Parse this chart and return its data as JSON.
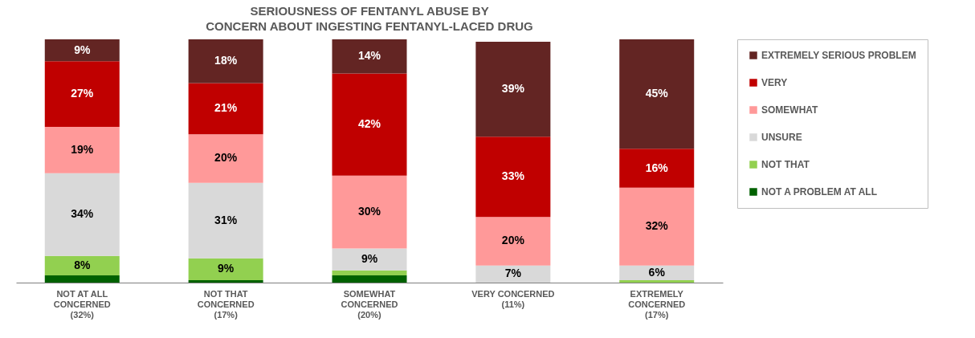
{
  "chart_data": {
    "type": "bar",
    "stacked": true,
    "title": "SERIOUSNESS OF FENTANYL ABUSE BY\nCONCERN ABOUT INGESTING FENTANYL-LACED DRUG",
    "categories": [
      "NOT AT ALL\nCONCERNED\n(32%)",
      "NOT THAT\nCONCERNED\n(17%)",
      "SOMEWHAT\nCONCERNED\n(20%)",
      "VERY CONCERNED\n(11%)",
      "EXTREMELY\nCONCERNED\n(17%)"
    ],
    "series": [
      {
        "name": "NOT A PROBLEM AT ALL",
        "color": "#006100",
        "values": [
          3,
          1,
          3,
          null,
          null
        ],
        "value_labels": [
          null,
          null,
          null,
          null,
          null
        ]
      },
      {
        "name": "NOT THAT",
        "color": "#92d050",
        "values": [
          8,
          9,
          2,
          null,
          1
        ],
        "value_labels": [
          "8%",
          "9%",
          null,
          null,
          null
        ]
      },
      {
        "name": "UNSURE",
        "color": "#d9d9d9",
        "values": [
          34,
          31,
          9,
          7,
          6
        ],
        "value_labels": [
          "34%",
          "31%",
          "9%",
          "7%",
          "6%"
        ]
      },
      {
        "name": "SOMEWHAT",
        "color": "#ff9999",
        "values": [
          19,
          20,
          30,
          20,
          32
        ],
        "value_labels": [
          "19%",
          "20%",
          "30%",
          "20%",
          "32%"
        ]
      },
      {
        "name": "VERY",
        "color": "#c00000",
        "values": [
          27,
          21,
          42,
          33,
          16
        ],
        "value_labels": [
          "27%",
          "21%",
          "42%",
          "33%",
          "16%"
        ]
      },
      {
        "name": "EXTREMELY SERIOUS PROBLEM",
        "color": "#632523",
        "values": [
          9,
          18,
          14,
          39,
          45
        ],
        "value_labels": [
          "9%",
          "18%",
          "14%",
          "39%",
          "45%"
        ]
      }
    ],
    "legend": "right"
  }
}
